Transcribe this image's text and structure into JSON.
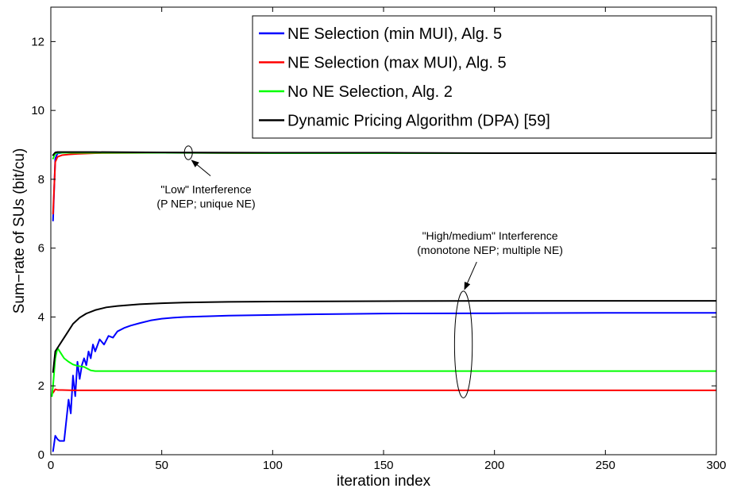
{
  "chart_data": {
    "type": "line",
    "title": "",
    "xlabel": "iteration index",
    "ylabel": "Sum−rate of SUs (bit/cu)",
    "xlim": [
      0,
      300
    ],
    "ylim": [
      0,
      13
    ],
    "xticks": [
      0,
      50,
      100,
      150,
      200,
      250,
      300
    ],
    "yticks": [
      0,
      2,
      4,
      6,
      8,
      10,
      12
    ],
    "grid": false,
    "legend_position": "top-right",
    "series": [
      {
        "name": "NE Selection (min MUI), Alg. 5",
        "color": "#0000ff",
        "x": [
          1,
          2,
          3,
          4,
          5,
          10,
          20,
          50,
          100,
          150,
          200,
          250,
          300
        ],
        "y": [
          6.8,
          8.6,
          8.75,
          8.76,
          8.77,
          8.77,
          8.77,
          8.77,
          8.76,
          8.76,
          8.76,
          8.76,
          8.76
        ]
      },
      {
        "name": "NE Selection (max MUI), Alg. 5",
        "color": "#ff0000",
        "x": [
          1,
          2,
          3,
          5,
          8,
          12,
          20,
          50,
          100,
          150,
          200,
          250,
          300
        ],
        "y": [
          7.0,
          8.5,
          8.65,
          8.7,
          8.72,
          8.74,
          8.76,
          8.77,
          8.76,
          8.76,
          8.76,
          8.76,
          8.76
        ]
      },
      {
        "name": "No NE Selection, Alg. 2",
        "color": "#00ff00",
        "x": [
          1,
          2,
          3,
          5,
          20,
          50,
          100,
          150,
          200,
          250,
          300
        ],
        "y": [
          8.6,
          8.75,
          8.77,
          8.77,
          8.77,
          8.77,
          8.76,
          8.76,
          8.76,
          8.76,
          8.76
        ]
      },
      {
        "name": "Dynamic Pricing Algorithm (DPA) [59]",
        "color": "#000000",
        "x": [
          1,
          2,
          3,
          5,
          20,
          50,
          100,
          150,
          200,
          250,
          300
        ],
        "y": [
          8.7,
          8.78,
          8.79,
          8.79,
          8.79,
          8.78,
          8.77,
          8.77,
          8.76,
          8.76,
          8.76
        ]
      },
      {
        "name": "NE Selection (min MUI), Alg. 5",
        "color": "#0000ff",
        "x": [
          1,
          2,
          3,
          4,
          5,
          6,
          7,
          8,
          9,
          10,
          11,
          12,
          13,
          14,
          15,
          16,
          17,
          18,
          19,
          20,
          22,
          24,
          26,
          28,
          30,
          33,
          36,
          40,
          45,
          50,
          55,
          60,
          70,
          80,
          100,
          120,
          150,
          200,
          250,
          300
        ],
        "y": [
          0.1,
          0.55,
          0.45,
          0.4,
          0.4,
          0.4,
          1.0,
          1.6,
          1.2,
          2.3,
          1.7,
          2.7,
          2.2,
          2.6,
          2.8,
          2.6,
          3.0,
          2.8,
          3.2,
          3.0,
          3.35,
          3.2,
          3.45,
          3.4,
          3.58,
          3.68,
          3.75,
          3.82,
          3.9,
          3.95,
          3.98,
          4.0,
          4.02,
          4.04,
          4.06,
          4.08,
          4.1,
          4.11,
          4.12,
          4.12
        ]
      },
      {
        "name": "NE Selection (max MUI), Alg. 5",
        "color": "#ff0000",
        "x": [
          1,
          2,
          3,
          5,
          10,
          50,
          100,
          150,
          200,
          250,
          300
        ],
        "y": [
          1.8,
          1.9,
          1.88,
          1.88,
          1.87,
          1.87,
          1.87,
          1.87,
          1.87,
          1.87,
          1.87
        ]
      },
      {
        "name": "No NE Selection, Alg. 2",
        "color": "#00ff00",
        "x": [
          0.5,
          1,
          2,
          3,
          4,
          5,
          6,
          8,
          10,
          12,
          15,
          18,
          20,
          50,
          100,
          150,
          200,
          250,
          300
        ],
        "y": [
          1.7,
          2.0,
          2.8,
          3.1,
          3.0,
          2.9,
          2.8,
          2.7,
          2.62,
          2.58,
          2.55,
          2.45,
          2.43,
          2.43,
          2.43,
          2.43,
          2.43,
          2.43,
          2.43
        ]
      },
      {
        "name": "Dynamic Pricing Algorithm (DPA) [59]",
        "color": "#000000",
        "x": [
          1,
          2,
          3,
          5,
          7,
          10,
          13,
          16,
          20,
          25,
          30,
          40,
          50,
          60,
          80,
          100,
          150,
          200,
          250,
          300
        ],
        "y": [
          2.4,
          3.0,
          3.1,
          3.3,
          3.5,
          3.8,
          3.98,
          4.1,
          4.2,
          4.28,
          4.32,
          4.37,
          4.4,
          4.42,
          4.44,
          4.45,
          4.46,
          4.47,
          4.47,
          4.47
        ]
      }
    ],
    "legend": [
      {
        "label": "NE Selection (min MUI), Alg. 5",
        "color": "#0000ff"
      },
      {
        "label": "NE Selection (max MUI), Alg. 5",
        "color": "#ff0000"
      },
      {
        "label": "No NE Selection, Alg. 2",
        "color": "#00ff00"
      },
      {
        "label": "Dynamic Pricing Algorithm (DPA) [59]",
        "color": "#000000"
      }
    ],
    "annotations": [
      {
        "lines": [
          "\"Low\" Interference",
          "(P NEP; unique NE)"
        ],
        "ellipse": {
          "cx": 62,
          "cy": 8.77,
          "rx": 1.8,
          "ry": 0.2
        },
        "arrow_from": [
          72,
          8.1
        ],
        "arrow_to": [
          63.5,
          8.55
        ],
        "text_at": [
          70,
          7.6
        ]
      },
      {
        "lines": [
          "\"High/medium\" Interference",
          "(monotone NEP; multiple NE)"
        ],
        "ellipse": {
          "cx": 186,
          "cy": 3.2,
          "rx": 4,
          "ry": 1.55
        },
        "arrow_from": [
          192,
          5.6
        ],
        "arrow_to": [
          186.5,
          4.8
        ],
        "text_at": [
          198,
          6.25
        ]
      }
    ]
  }
}
